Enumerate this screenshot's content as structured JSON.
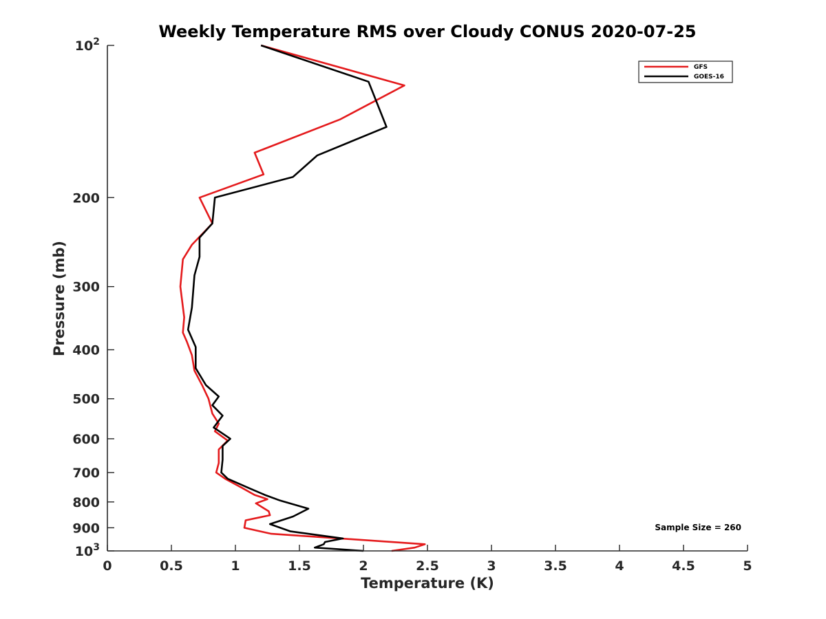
{
  "chart_data": {
    "type": "line",
    "title": "Weekly Temperature RMS over Cloudy CONUS 2020-07-25",
    "xlabel": "Temperature (K)",
    "ylabel": "Pressure (mb)",
    "xlim": [
      0,
      5
    ],
    "ylim": [
      100,
      1000
    ],
    "yscale": "log",
    "y_reversed": true,
    "grid": false,
    "legend_position": "top-right",
    "x_ticks": [
      "0",
      "0.5",
      "1",
      "1.5",
      "2",
      "2.5",
      "3",
      "3.5",
      "4",
      "4.5",
      "5"
    ],
    "x_tick_values": [
      0,
      0.5,
      1,
      1.5,
      2,
      2.5,
      3,
      3.5,
      4,
      4.5,
      5
    ],
    "y_ticks": [
      {
        "value": 100,
        "base": "10",
        "exp": "2"
      },
      {
        "value": 200,
        "label": "200"
      },
      {
        "value": 300,
        "label": "300"
      },
      {
        "value": 400,
        "label": "400"
      },
      {
        "value": 500,
        "label": "500"
      },
      {
        "value": 600,
        "label": "600"
      },
      {
        "value": 700,
        "label": "700"
      },
      {
        "value": 800,
        "label": "800"
      },
      {
        "value": 900,
        "label": "900"
      },
      {
        "value": 1000,
        "base": "10",
        "exp": "3"
      }
    ],
    "annotation": "Sample Size = 260",
    "series": [
      {
        "name": "GFS",
        "color": "#e41a1c",
        "points": [
          [
            1.2,
            100
          ],
          [
            2.32,
            120
          ],
          [
            1.82,
            140
          ],
          [
            1.15,
            163
          ],
          [
            1.22,
            180
          ],
          [
            0.72,
            200
          ],
          [
            0.82,
            225
          ],
          [
            0.66,
            248
          ],
          [
            0.59,
            265
          ],
          [
            0.57,
            300
          ],
          [
            0.6,
            345
          ],
          [
            0.59,
            370
          ],
          [
            0.62,
            385
          ],
          [
            0.66,
            410
          ],
          [
            0.68,
            440
          ],
          [
            0.74,
            470
          ],
          [
            0.79,
            500
          ],
          [
            0.82,
            535
          ],
          [
            0.87,
            560
          ],
          [
            0.84,
            580
          ],
          [
            0.94,
            605
          ],
          [
            0.87,
            630
          ],
          [
            0.87,
            670
          ],
          [
            0.85,
            700
          ],
          [
            0.92,
            720
          ],
          [
            1.05,
            750
          ],
          [
            1.15,
            775
          ],
          [
            1.25,
            790
          ],
          [
            1.16,
            805
          ],
          [
            1.26,
            835
          ],
          [
            1.27,
            850
          ],
          [
            1.08,
            870
          ],
          [
            1.07,
            900
          ],
          [
            1.28,
            925
          ],
          [
            2.48,
            970
          ],
          [
            2.4,
            985
          ],
          [
            2.22,
            1000
          ]
        ]
      },
      {
        "name": "GOES-16",
        "color": "#000000",
        "points": [
          [
            1.2,
            100
          ],
          [
            2.04,
            118
          ],
          [
            2.18,
            145
          ],
          [
            1.64,
            165
          ],
          [
            1.45,
            182
          ],
          [
            0.84,
            200
          ],
          [
            0.82,
            225
          ],
          [
            0.72,
            240
          ],
          [
            0.72,
            262
          ],
          [
            0.68,
            285
          ],
          [
            0.66,
            330
          ],
          [
            0.63,
            365
          ],
          [
            0.69,
            395
          ],
          [
            0.69,
            435
          ],
          [
            0.77,
            470
          ],
          [
            0.87,
            495
          ],
          [
            0.82,
            515
          ],
          [
            0.9,
            540
          ],
          [
            0.83,
            570
          ],
          [
            0.96,
            600
          ],
          [
            0.9,
            620
          ],
          [
            0.9,
            660
          ],
          [
            0.89,
            700
          ],
          [
            0.94,
            720
          ],
          [
            1.1,
            750
          ],
          [
            1.23,
            775
          ],
          [
            1.35,
            795
          ],
          [
            1.57,
            825
          ],
          [
            1.45,
            855
          ],
          [
            1.27,
            885
          ],
          [
            1.43,
            915
          ],
          [
            1.84,
            945
          ],
          [
            1.7,
            960
          ],
          [
            1.69,
            970
          ],
          [
            1.62,
            985
          ],
          [
            2.0,
            1000
          ]
        ]
      }
    ]
  }
}
